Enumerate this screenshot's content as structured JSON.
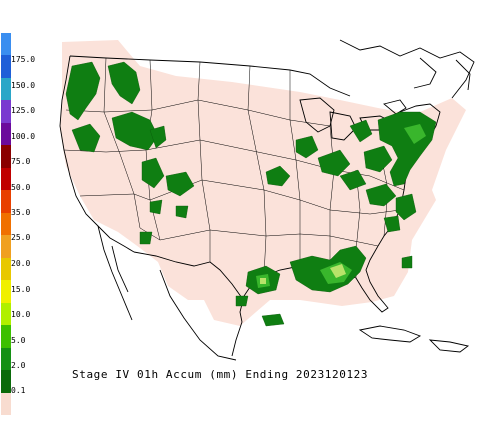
{
  "caption": "Stage IV 01h Accum (mm) Ending 2023120123",
  "legend": {
    "labels": [
      "175.0",
      "150.0",
      "125.0",
      "100.0",
      "75.0",
      "50.0",
      "35.0",
      "25.0",
      "20.0",
      "15.0",
      "10.0",
      "5.0",
      "2.0",
      "0.1"
    ],
    "colors": [
      "#3a8ef0",
      "#1f5fd8",
      "#2aa6c8",
      "#7a3ad0",
      "#6b0a9c",
      "#8a0000",
      "#c00000",
      "#e84000",
      "#f07000",
      "#f0a020",
      "#e8c800",
      "#f0f000",
      "#b0f000",
      "#3cc000",
      "#149014",
      "#0a6a0a",
      "#f8dcd0"
    ]
  },
  "colors": {
    "coverage": "#fbe2da",
    "precip_light": "#0f7e12",
    "precip_medium": "#39b62c",
    "precip_heavy": "#b8e36a",
    "outline": "#000000"
  }
}
